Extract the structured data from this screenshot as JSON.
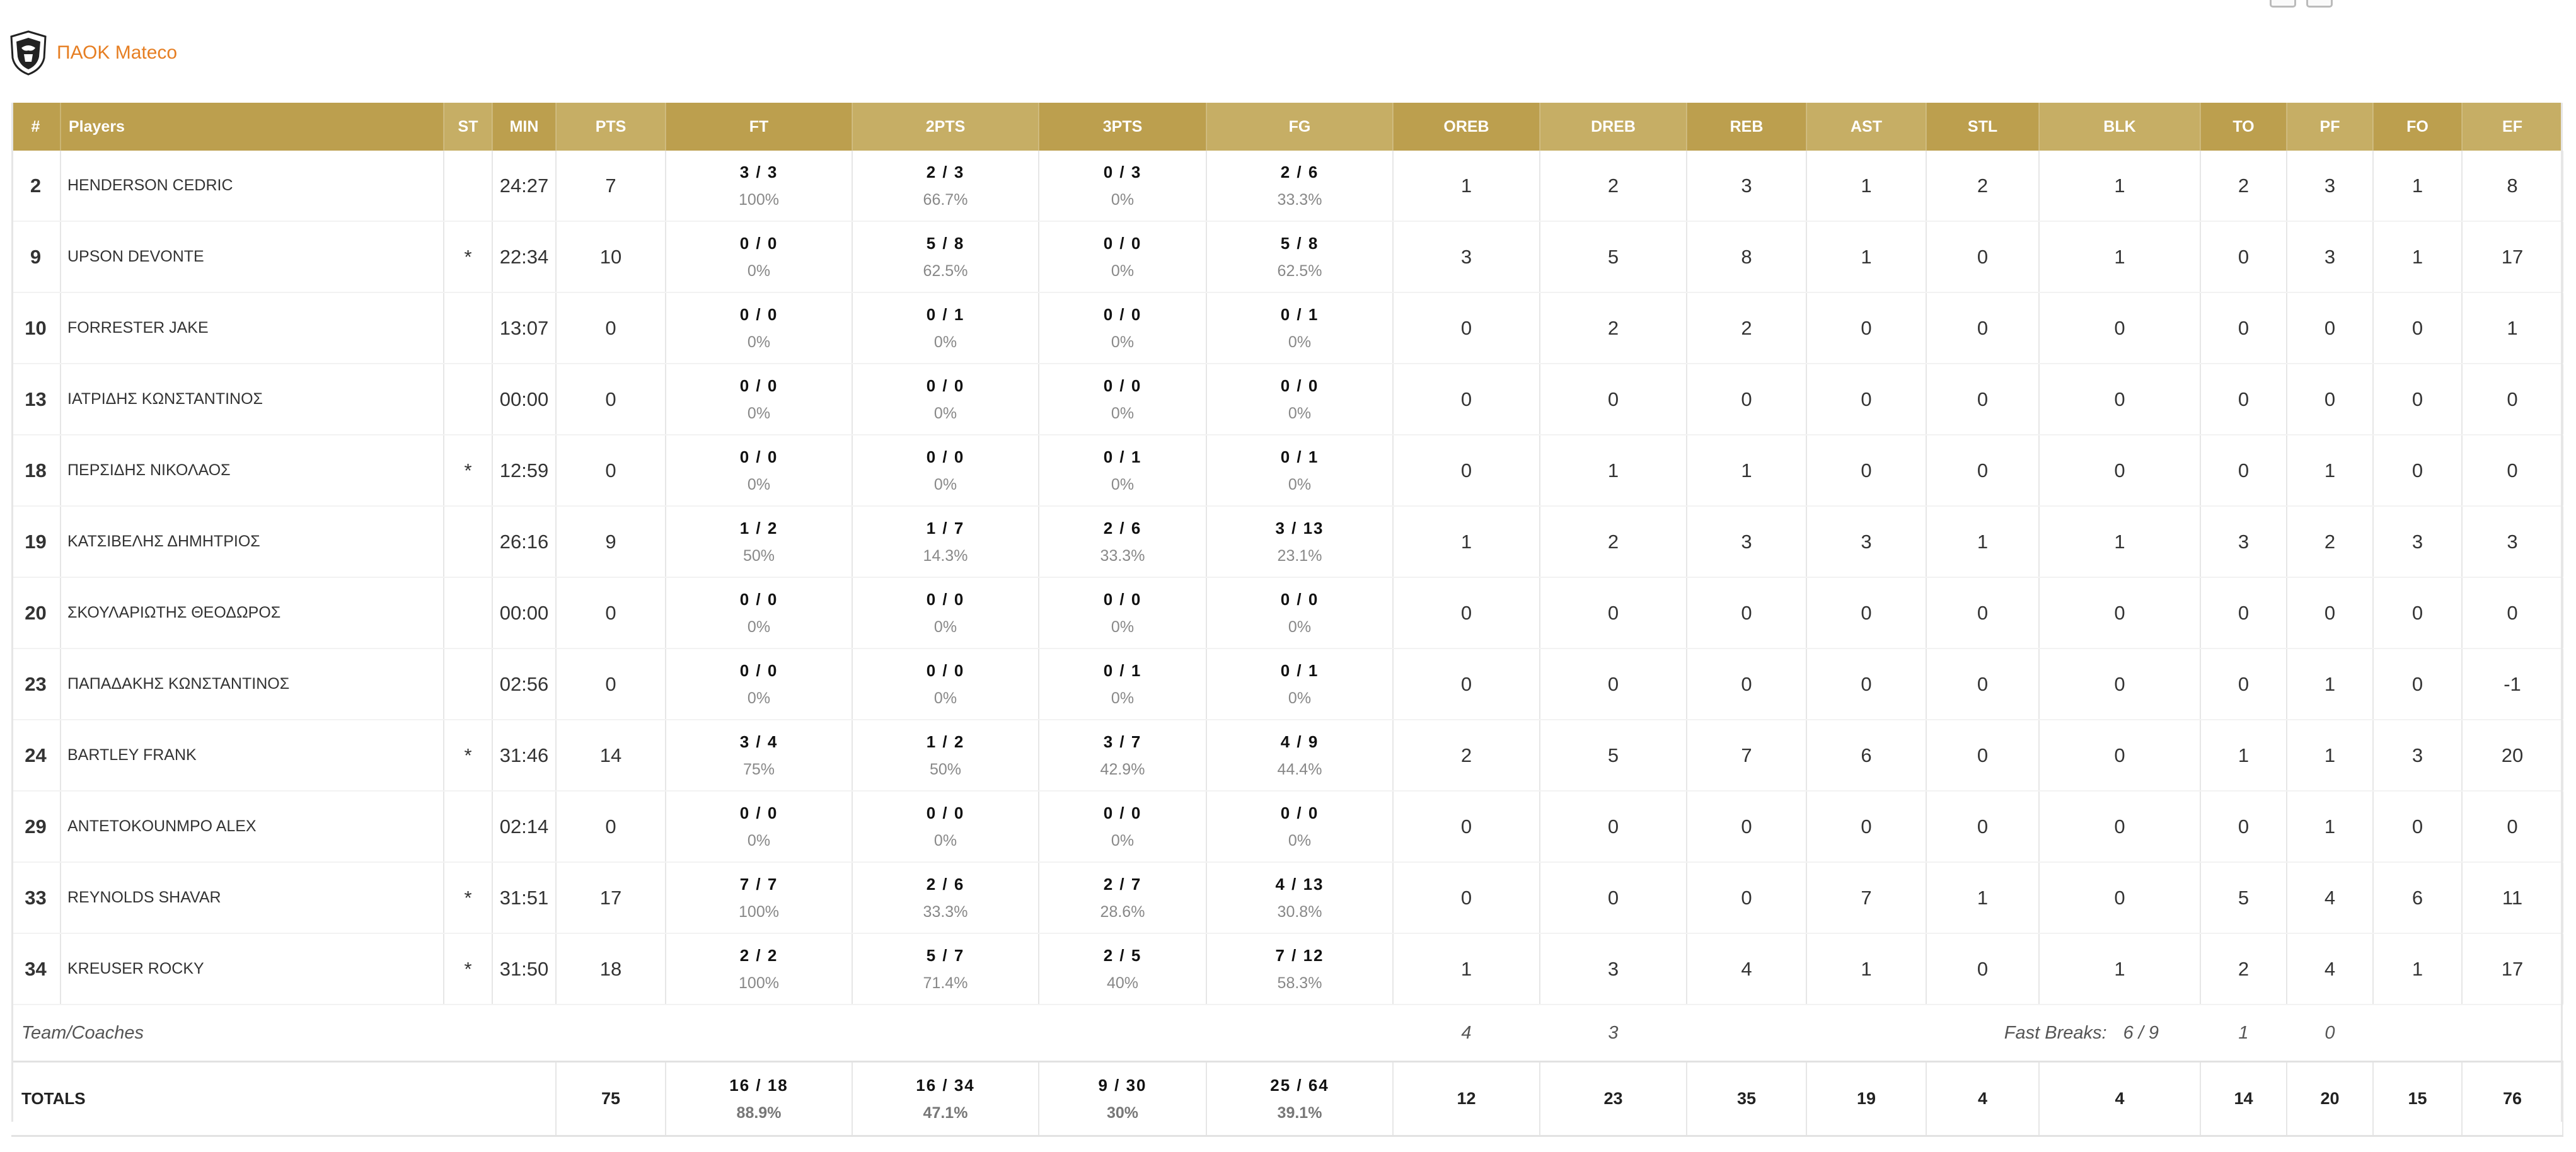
{
  "team": {
    "name": "ΠΑΟΚ Mateco",
    "logo_icon": "team-crest-icon"
  },
  "colors": {
    "header_dark": "#bc9f4e",
    "header_light": "#c6ae65",
    "team_name": "#e67e22"
  },
  "columns": [
    "#",
    "Players",
    "ST",
    "MIN",
    "PTS",
    "FT",
    "2PTS",
    "3PTS",
    "FG",
    "OREB",
    "DREB",
    "REB",
    "AST",
    "STL",
    "BLK",
    "TO",
    "PF",
    "FO",
    "EF"
  ],
  "players": [
    {
      "num": "2",
      "name": "HENDERSON CEDRIC",
      "st": "",
      "min": "24:27",
      "pts": "7",
      "ft": {
        "m": "3 / 3",
        "p": "100%"
      },
      "p2": {
        "m": "2 / 3",
        "p": "66.7%"
      },
      "p3": {
        "m": "0 / 3",
        "p": "0%"
      },
      "fg": {
        "m": "2 / 6",
        "p": "33.3%"
      },
      "oreb": "1",
      "dreb": "2",
      "reb": "3",
      "ast": "1",
      "stl": "2",
      "blk": "1",
      "to": "2",
      "pf": "3",
      "fo": "1",
      "ef": "8"
    },
    {
      "num": "9",
      "name": "UPSON DEVONTE",
      "st": "*",
      "min": "22:34",
      "pts": "10",
      "ft": {
        "m": "0 / 0",
        "p": "0%"
      },
      "p2": {
        "m": "5 / 8",
        "p": "62.5%"
      },
      "p3": {
        "m": "0 / 0",
        "p": "0%"
      },
      "fg": {
        "m": "5 / 8",
        "p": "62.5%"
      },
      "oreb": "3",
      "dreb": "5",
      "reb": "8",
      "ast": "1",
      "stl": "0",
      "blk": "1",
      "to": "0",
      "pf": "3",
      "fo": "1",
      "ef": "17"
    },
    {
      "num": "10",
      "name": "FORRESTER JAKE",
      "st": "",
      "min": "13:07",
      "pts": "0",
      "ft": {
        "m": "0 / 0",
        "p": "0%"
      },
      "p2": {
        "m": "0 / 1",
        "p": "0%"
      },
      "p3": {
        "m": "0 / 0",
        "p": "0%"
      },
      "fg": {
        "m": "0 / 1",
        "p": "0%"
      },
      "oreb": "0",
      "dreb": "2",
      "reb": "2",
      "ast": "0",
      "stl": "0",
      "blk": "0",
      "to": "0",
      "pf": "0",
      "fo": "0",
      "ef": "1"
    },
    {
      "num": "13",
      "name": "ΙΑΤΡΙΔΗΣ ΚΩΝΣΤΑΝΤΙΝΟΣ",
      "st": "",
      "min": "00:00",
      "pts": "0",
      "ft": {
        "m": "0 / 0",
        "p": "0%"
      },
      "p2": {
        "m": "0 / 0",
        "p": "0%"
      },
      "p3": {
        "m": "0 / 0",
        "p": "0%"
      },
      "fg": {
        "m": "0 / 0",
        "p": "0%"
      },
      "oreb": "0",
      "dreb": "0",
      "reb": "0",
      "ast": "0",
      "stl": "0",
      "blk": "0",
      "to": "0",
      "pf": "0",
      "fo": "0",
      "ef": "0"
    },
    {
      "num": "18",
      "name": "ΠΕΡΣΙΔΗΣ ΝΙΚΟΛΑΟΣ",
      "st": "*",
      "min": "12:59",
      "pts": "0",
      "ft": {
        "m": "0 / 0",
        "p": "0%"
      },
      "p2": {
        "m": "0 / 0",
        "p": "0%"
      },
      "p3": {
        "m": "0 / 1",
        "p": "0%"
      },
      "fg": {
        "m": "0 / 1",
        "p": "0%"
      },
      "oreb": "0",
      "dreb": "1",
      "reb": "1",
      "ast": "0",
      "stl": "0",
      "blk": "0",
      "to": "0",
      "pf": "1",
      "fo": "0",
      "ef": "0"
    },
    {
      "num": "19",
      "name": "ΚΑΤΣΙΒΕΛΗΣ ΔΗΜΗΤΡΙΟΣ",
      "st": "",
      "min": "26:16",
      "pts": "9",
      "ft": {
        "m": "1 / 2",
        "p": "50%"
      },
      "p2": {
        "m": "1 / 7",
        "p": "14.3%"
      },
      "p3": {
        "m": "2 / 6",
        "p": "33.3%"
      },
      "fg": {
        "m": "3 / 13",
        "p": "23.1%"
      },
      "oreb": "1",
      "dreb": "2",
      "reb": "3",
      "ast": "3",
      "stl": "1",
      "blk": "1",
      "to": "3",
      "pf": "2",
      "fo": "3",
      "ef": "3"
    },
    {
      "num": "20",
      "name": "ΣΚΟΥΛΑΡΙΩΤΗΣ ΘΕΟΔΩΡΟΣ",
      "st": "",
      "min": "00:00",
      "pts": "0",
      "ft": {
        "m": "0 / 0",
        "p": "0%"
      },
      "p2": {
        "m": "0 / 0",
        "p": "0%"
      },
      "p3": {
        "m": "0 / 0",
        "p": "0%"
      },
      "fg": {
        "m": "0 / 0",
        "p": "0%"
      },
      "oreb": "0",
      "dreb": "0",
      "reb": "0",
      "ast": "0",
      "stl": "0",
      "blk": "0",
      "to": "0",
      "pf": "0",
      "fo": "0",
      "ef": "0"
    },
    {
      "num": "23",
      "name": "ΠΑΠΑΔΑΚΗΣ ΚΩΝΣΤΑΝΤΙΝΟΣ",
      "st": "",
      "min": "02:56",
      "pts": "0",
      "ft": {
        "m": "0 / 0",
        "p": "0%"
      },
      "p2": {
        "m": "0 / 0",
        "p": "0%"
      },
      "p3": {
        "m": "0 / 1",
        "p": "0%"
      },
      "fg": {
        "m": "0 / 1",
        "p": "0%"
      },
      "oreb": "0",
      "dreb": "0",
      "reb": "0",
      "ast": "0",
      "stl": "0",
      "blk": "0",
      "to": "0",
      "pf": "1",
      "fo": "0",
      "ef": "-1"
    },
    {
      "num": "24",
      "name": "BARTLEY FRANK",
      "st": "*",
      "min": "31:46",
      "pts": "14",
      "ft": {
        "m": "3 / 4",
        "p": "75%"
      },
      "p2": {
        "m": "1 / 2",
        "p": "50%"
      },
      "p3": {
        "m": "3 / 7",
        "p": "42.9%"
      },
      "fg": {
        "m": "4 / 9",
        "p": "44.4%"
      },
      "oreb": "2",
      "dreb": "5",
      "reb": "7",
      "ast": "6",
      "stl": "0",
      "blk": "0",
      "to": "1",
      "pf": "1",
      "fo": "3",
      "ef": "20"
    },
    {
      "num": "29",
      "name": "ANTETOKOUNMPO ALEX",
      "st": "",
      "min": "02:14",
      "pts": "0",
      "ft": {
        "m": "0 / 0",
        "p": "0%"
      },
      "p2": {
        "m": "0 / 0",
        "p": "0%"
      },
      "p3": {
        "m": "0 / 0",
        "p": "0%"
      },
      "fg": {
        "m": "0 / 0",
        "p": "0%"
      },
      "oreb": "0",
      "dreb": "0",
      "reb": "0",
      "ast": "0",
      "stl": "0",
      "blk": "0",
      "to": "0",
      "pf": "1",
      "fo": "0",
      "ef": "0"
    },
    {
      "num": "33",
      "name": "REYNOLDS SHAVAR",
      "st": "*",
      "min": "31:51",
      "pts": "17",
      "ft": {
        "m": "7 / 7",
        "p": "100%"
      },
      "p2": {
        "m": "2 / 6",
        "p": "33.3%"
      },
      "p3": {
        "m": "2 / 7",
        "p": "28.6%"
      },
      "fg": {
        "m": "4 / 13",
        "p": "30.8%"
      },
      "oreb": "0",
      "dreb": "0",
      "reb": "0",
      "ast": "7",
      "stl": "1",
      "blk": "0",
      "to": "5",
      "pf": "4",
      "fo": "6",
      "ef": "11"
    },
    {
      "num": "34",
      "name": "KREUSER ROCKY",
      "st": "*",
      "min": "31:50",
      "pts": "18",
      "ft": {
        "m": "2 / 2",
        "p": "100%"
      },
      "p2": {
        "m": "5 / 7",
        "p": "71.4%"
      },
      "p3": {
        "m": "2 / 5",
        "p": "40%"
      },
      "fg": {
        "m": "7 / 12",
        "p": "58.3%"
      },
      "oreb": "1",
      "dreb": "3",
      "reb": "4",
      "ast": "1",
      "stl": "0",
      "blk": "1",
      "to": "2",
      "pf": "4",
      "fo": "1",
      "ef": "17"
    }
  ],
  "team_coaches": {
    "label": "Team/Coaches",
    "oreb": "4",
    "dreb": "3",
    "fast_breaks_label": "Fast Breaks:",
    "fast_breaks_value": "6 / 9",
    "to": "1",
    "pf": "0"
  },
  "totals": {
    "label": "TOTALS",
    "pts": "75",
    "ft": {
      "m": "16 / 18",
      "p": "88.9%"
    },
    "p2": {
      "m": "16 / 34",
      "p": "47.1%"
    },
    "p3": {
      "m": "9 / 30",
      "p": "30%"
    },
    "fg": {
      "m": "25 / 64",
      "p": "39.1%"
    },
    "oreb": "12",
    "dreb": "23",
    "reb": "35",
    "ast": "19",
    "stl": "4",
    "blk": "4",
    "to": "14",
    "pf": "20",
    "fo": "15",
    "ef": "76"
  }
}
